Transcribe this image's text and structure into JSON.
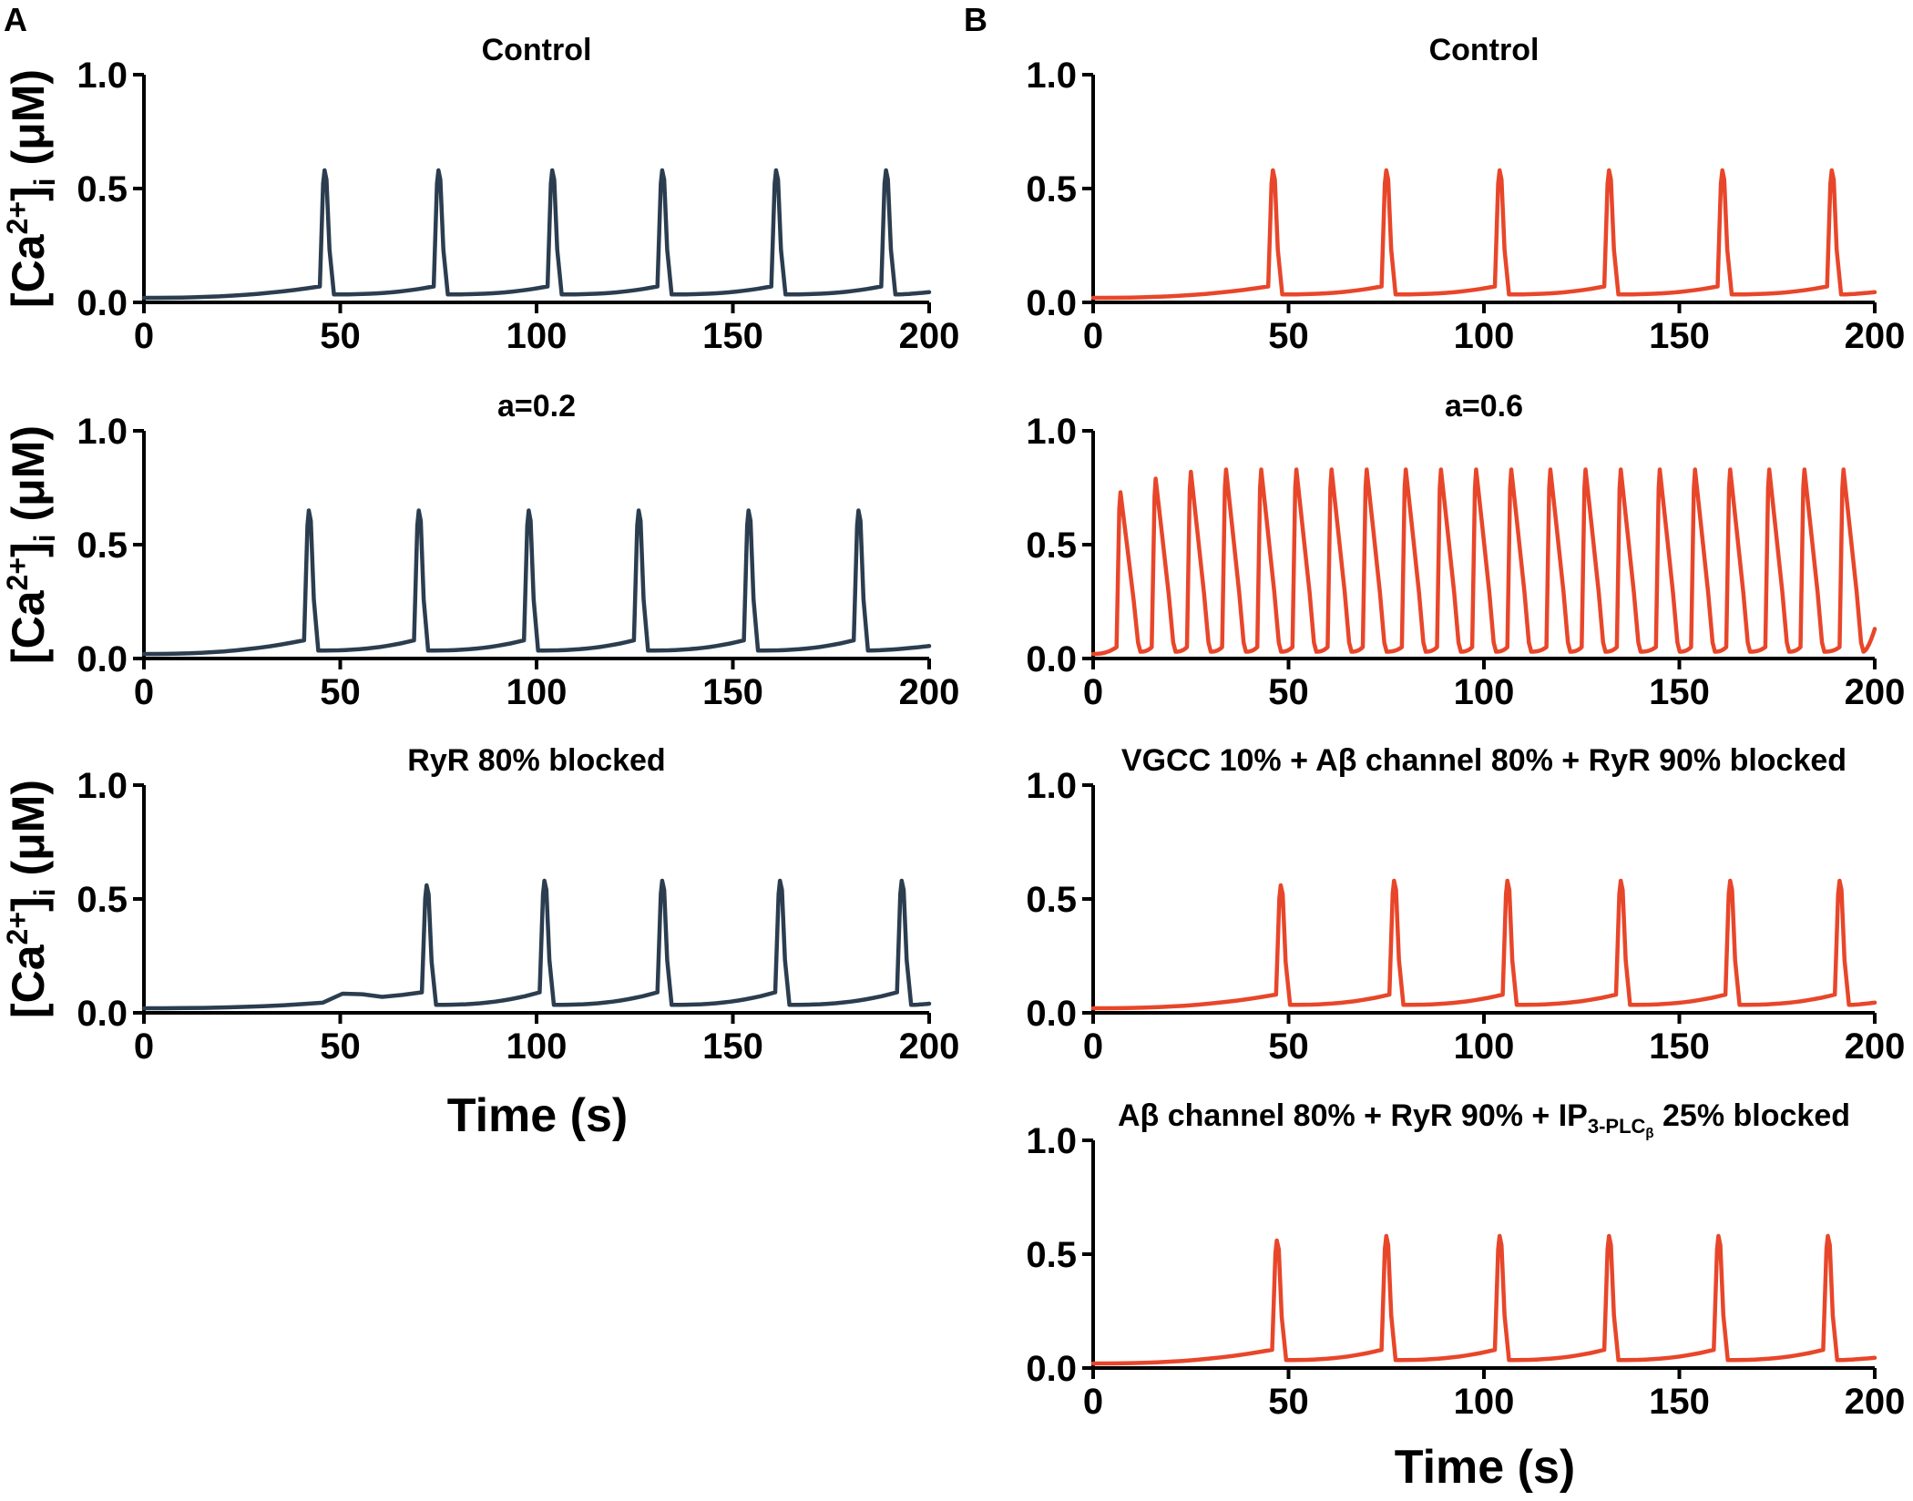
{
  "panel_labels": [
    "A",
    "B"
  ],
  "colors": {
    "column_A": "#2b3d4f",
    "column_B": "#e8462a"
  },
  "ylabel": {
    "main": "[Ca",
    "sup": "2+",
    "mid": "]",
    "sub": "i",
    "unit": " (μM)"
  },
  "xlabel": "Time (s)",
  "chart_data": [
    {
      "type": "line",
      "id": "A1",
      "column": "A",
      "title": "Control",
      "xlim": [
        0,
        200
      ],
      "ylim": [
        0,
        1
      ],
      "xticks": [
        "0",
        "50",
        "100",
        "150",
        "200"
      ],
      "yticks": [
        "0.0",
        "0.5",
        "1.0"
      ],
      "baseline": 0.02,
      "pre_peak": 0.07,
      "valley": 0.035,
      "tail_end": 0.045,
      "peaks_x": [
        46,
        75,
        104,
        132,
        161,
        189
      ],
      "peak_y": [
        0.58,
        0.58,
        0.58,
        0.58,
        0.58,
        0.58
      ]
    },
    {
      "type": "line",
      "id": "A2",
      "column": "A",
      "title": "a=0.2",
      "xlim": [
        0,
        200
      ],
      "ylim": [
        0,
        1
      ],
      "xticks": [
        "0",
        "50",
        "100",
        "150",
        "200"
      ],
      "yticks": [
        "0.0",
        "0.5",
        "1.0"
      ],
      "baseline": 0.02,
      "pre_peak": 0.08,
      "valley": 0.035,
      "tail_end": 0.055,
      "peaks_x": [
        42,
        70,
        98,
        126,
        154,
        182
      ],
      "peak_y": [
        0.65,
        0.65,
        0.65,
        0.65,
        0.65,
        0.65
      ]
    },
    {
      "type": "line",
      "id": "A3",
      "column": "A",
      "title": "RyR 80% blocked",
      "xlim": [
        0,
        200
      ],
      "ylim": [
        0,
        1
      ],
      "xticks": [
        "0",
        "50",
        "100",
        "150",
        "200"
      ],
      "yticks": [
        "0.0",
        "0.5",
        "1.0"
      ],
      "baseline": 0.02,
      "pre_peak": 0.09,
      "valley": 0.035,
      "tail_end": 0.04,
      "peaks_x": [
        72,
        102,
        132,
        162,
        193
      ],
      "peak_y": [
        0.56,
        0.58,
        0.58,
        0.58,
        0.58
      ]
    },
    {
      "type": "line",
      "id": "B1",
      "column": "B",
      "title": "Control",
      "xlim": [
        0,
        200
      ],
      "ylim": [
        0,
        1
      ],
      "xticks": [
        "0",
        "50",
        "100",
        "150",
        "200"
      ],
      "yticks": [
        "0.0",
        "0.5",
        "1.0"
      ],
      "baseline": 0.02,
      "pre_peak": 0.07,
      "valley": 0.035,
      "tail_end": 0.045,
      "peaks_x": [
        46,
        75,
        104,
        132,
        161,
        189
      ],
      "peak_y": [
        0.58,
        0.58,
        0.58,
        0.58,
        0.58,
        0.58
      ]
    },
    {
      "type": "line",
      "id": "B2",
      "column": "B",
      "title": "a=0.6",
      "xlim": [
        0,
        200
      ],
      "ylim": [
        0,
        1
      ],
      "xticks": [
        "0",
        "50",
        "100",
        "150",
        "200"
      ],
      "yticks": [
        "0.0",
        "0.5",
        "1.0"
      ],
      "baseline": 0.02,
      "pre_peak": 0.05,
      "valley": 0.03,
      "tail_end": 0.13,
      "peaks_x": [
        7,
        16,
        25,
        34,
        43,
        52,
        61,
        70,
        80,
        89,
        98,
        107,
        117,
        126,
        135,
        145,
        154,
        163,
        173,
        182,
        192
      ],
      "peak_y": [
        0.73,
        0.79,
        0.82,
        0.83,
        0.83,
        0.83,
        0.83,
        0.83,
        0.83,
        0.83,
        0.83,
        0.83,
        0.83,
        0.83,
        0.83,
        0.83,
        0.83,
        0.83,
        0.83,
        0.83,
        0.83
      ]
    },
    {
      "type": "line",
      "id": "B3",
      "column": "B",
      "title": "VGCC 10% + Aβ channel 80% + RyR 90% blocked",
      "xlim": [
        0,
        200
      ],
      "ylim": [
        0,
        1
      ],
      "xticks": [
        "0",
        "50",
        "100",
        "150",
        "200"
      ],
      "yticks": [
        "0.0",
        "0.5",
        "1.0"
      ],
      "baseline": 0.02,
      "pre_peak": 0.08,
      "valley": 0.035,
      "tail_end": 0.045,
      "peaks_x": [
        48,
        77,
        106,
        135,
        163,
        191
      ],
      "peak_y": [
        0.56,
        0.58,
        0.58,
        0.58,
        0.58,
        0.58
      ]
    },
    {
      "type": "line",
      "id": "B4",
      "column": "B",
      "title_parts": {
        "pre": "Aβ channel 80% + RyR 90% + IP",
        "sub": "3-PLC",
        "subsub": "β",
        "post": " 25% blocked"
      },
      "xlim": [
        0,
        200
      ],
      "ylim": [
        0,
        1
      ],
      "xticks": [
        "0",
        "50",
        "100",
        "150",
        "200"
      ],
      "yticks": [
        "0.0",
        "0.5",
        "1.0"
      ],
      "baseline": 0.02,
      "pre_peak": 0.08,
      "valley": 0.035,
      "tail_end": 0.045,
      "peaks_x": [
        47,
        75,
        104,
        132,
        160,
        188
      ],
      "peak_y": [
        0.56,
        0.58,
        0.58,
        0.58,
        0.58,
        0.58
      ]
    }
  ]
}
